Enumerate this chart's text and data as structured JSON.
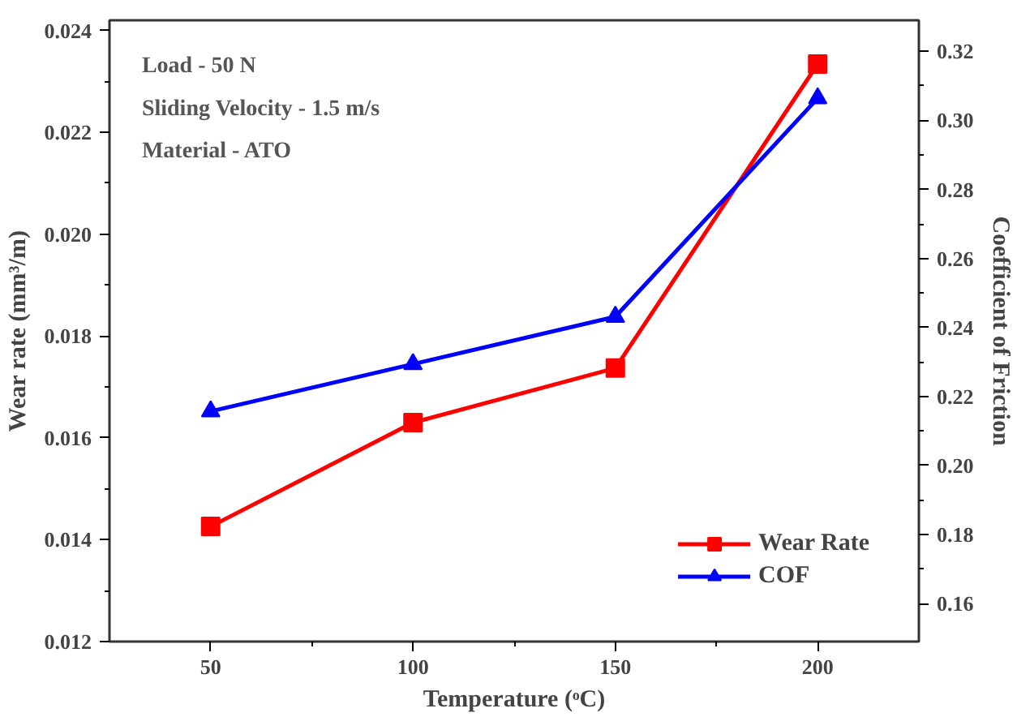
{
  "chart_data": {
    "type": "line",
    "xlabel": "Temperature (ᵒC)",
    "ylabel": "Wear rate (mm³/m)",
    "y2label": "Coefficient of Friction",
    "x": [
      50,
      100,
      150,
      200
    ],
    "series": [
      {
        "name": "Wear Rate",
        "color": "#ff0000",
        "marker": "square",
        "values": [
          0.01426,
          0.0163,
          0.01737,
          0.02334
        ]
      },
      {
        "name": "COF",
        "color": "#0000ff",
        "marker": "triangle",
        "axis": "y2",
        "values": [
          0.2157,
          0.2294,
          0.2431,
          0.3064
        ]
      }
    ],
    "xlim": [
      25,
      225
    ],
    "xticks": [
      50,
      100,
      150,
      200
    ],
    "ylim": [
      0.012,
      0.0242
    ],
    "yticks": [
      {
        "value": 0.012,
        "label": "0.012"
      },
      {
        "value": 0.014,
        "label": "0.014"
      },
      {
        "value": 0.016,
        "label": "0.016"
      },
      {
        "value": 0.018,
        "label": "0.018"
      },
      {
        "value": 0.02,
        "label": "0.020"
      },
      {
        "value": 0.022,
        "label": "0.022"
      },
      {
        "value": 0.024,
        "label": "0.024"
      }
    ],
    "y2lim": [
      0.149,
      0.329
    ],
    "y2ticks": [
      {
        "value": 0.16,
        "label": "0.16"
      },
      {
        "value": 0.18,
        "label": "0.18"
      },
      {
        "value": 0.2,
        "label": "0.20"
      },
      {
        "value": 0.22,
        "label": "0.22"
      },
      {
        "value": 0.24,
        "label": "0.24"
      },
      {
        "value": 0.26,
        "label": "0.26"
      },
      {
        "value": 0.28,
        "label": "0.28"
      },
      {
        "value": 0.3,
        "label": "0.30"
      },
      {
        "value": 0.32,
        "label": "0.32"
      }
    ],
    "annotations": [
      "Load - 50 N",
      "Sliding Velocity - 1.5 m/s",
      "Material - ATO"
    ],
    "legend": "bottom right",
    "grid": false,
    "line_style": "solid"
  }
}
